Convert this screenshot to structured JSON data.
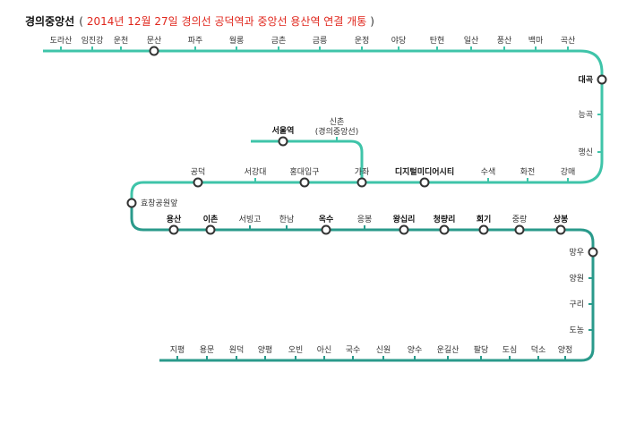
{
  "title": {
    "line": "경의중앙선",
    "open": "(",
    "note": "2014년 12월 27일 경의선 공덕역과 중앙선 용산역 연결 개통",
    "close": ")"
  },
  "stations": [
    "도라산",
    "임진강",
    "운천",
    "문산",
    "파주",
    "월롱",
    "금촌",
    "금릉",
    "운정",
    "야당",
    "탄현",
    "일산",
    "풍산",
    "백마",
    "곡산",
    "대곡",
    "능곡",
    "행신",
    "강매",
    "화전",
    "수색",
    "디지털미디어시티",
    "가좌",
    "홍대입구",
    "서강대",
    "공덕",
    "효창공원앞",
    "용산",
    "이촌",
    "서빙고",
    "한남",
    "옥수",
    "응봉",
    "왕십리",
    "청량리",
    "회기",
    "중랑",
    "상봉",
    "망우",
    "양원",
    "구리",
    "도농",
    "양정",
    "덕소",
    "도심",
    "팔당",
    "운길산",
    "양수",
    "신원",
    "국수",
    "아신",
    "오빈",
    "양평",
    "원덕",
    "용문",
    "지평"
  ],
  "branch": [
    "서울역",
    [
      "신촌",
      "(경의중앙선)"
    ]
  ]
}
